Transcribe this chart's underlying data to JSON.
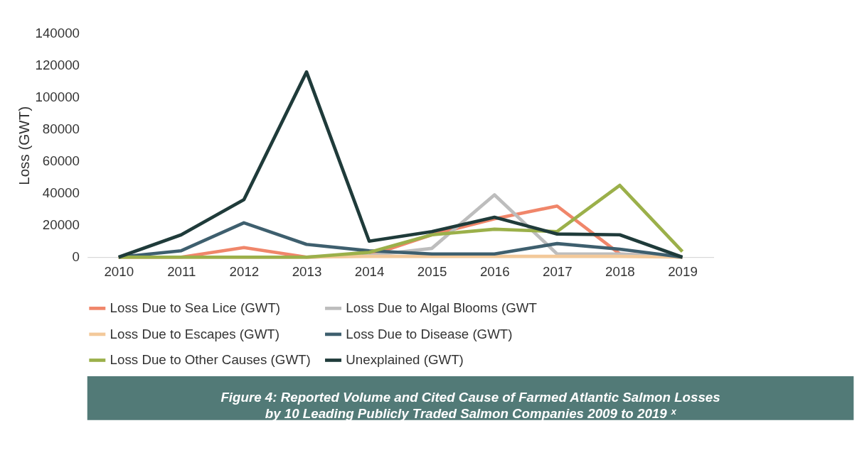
{
  "chart_data": {
    "type": "line",
    "ylabel": "Loss (GWT)",
    "categories": [
      "2010",
      "2011",
      "2012",
      "2013",
      "2014",
      "2015",
      "2016",
      "2017",
      "2018",
      "2019"
    ],
    "series": [
      {
        "name": "Loss Due to Sea Lice (GWT)",
        "color": "#f0866a",
        "values": [
          0,
          0,
          6000,
          0,
          1000,
          14000,
          24000,
          32000,
          2000,
          0
        ]
      },
      {
        "name": "Loss Due to Algal Blooms (GWT",
        "color": "#bdbdbd",
        "values": [
          0,
          0,
          0,
          0,
          1000,
          5500,
          39000,
          2000,
          2000,
          0
        ]
      },
      {
        "name": "Loss Due to Escapes (GWT)",
        "color": "#f3c99a",
        "values": [
          0,
          0,
          0,
          0,
          500,
          500,
          500,
          500,
          500,
          0
        ]
      },
      {
        "name": "Loss Due to Disease (GWT)",
        "color": "#3e5f6e",
        "values": [
          0,
          4000,
          21500,
          8000,
          4000,
          2000,
          2000,
          8500,
          5000,
          0
        ]
      },
      {
        "name": "Loss Due to Other Causes (GWT)",
        "color": "#9bb04a",
        "values": [
          0,
          0,
          0,
          0,
          3000,
          14000,
          17500,
          16000,
          45000,
          3500
        ]
      },
      {
        "name": "Unexplained (GWT)",
        "color": "#1f3b3a",
        "values": [
          0,
          14000,
          36000,
          116000,
          10000,
          16000,
          25000,
          14500,
          14000,
          0
        ]
      }
    ],
    "ylim": [
      0,
      140000
    ],
    "yticks": [
      0,
      20000,
      40000,
      60000,
      80000,
      100000,
      120000,
      140000
    ],
    "grid": false,
    "legend": "bottom",
    "marker": "none",
    "line_style": "solid",
    "annotations": [
      "Figure 4: Reported Volume and Cited Cause of Farmed Atlantic Salmon Losses\nby 10 Leading Publicly Traded Salmon Companies 2009 to 2019 ˣ"
    ]
  }
}
